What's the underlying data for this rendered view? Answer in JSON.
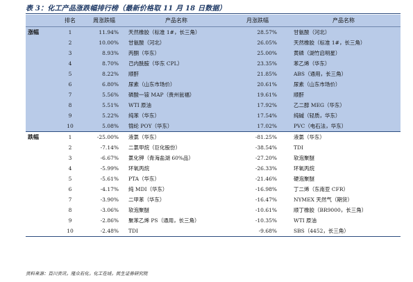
{
  "title": "表 3：化工产品涨跌幅排行榜（最新价格取 11 月 18 日数据）",
  "headers": {
    "rank": "排名",
    "weekly_change": "周涨跌幅",
    "product_name": "产品名称",
    "monthly_change": "月涨跌幅",
    "product_name_2": "产品名称"
  },
  "gainers": {
    "label": "涨幅",
    "rows": [
      {
        "rank": "1",
        "weekly": "11.94%",
        "weekly_product": "天然橡胶（标准 1#，长三角）",
        "monthly": "28.57%",
        "monthly_product": "甘氨酸（河北）"
      },
      {
        "rank": "2",
        "weekly": "10.00%",
        "weekly_product": "甘氨酸（河北）",
        "monthly": "26.05%",
        "monthly_product": "天然橡胶（标准 1#，长三角）"
      },
      {
        "rank": "3",
        "weekly": "8.93%",
        "weekly_product": "丙酮（华东）",
        "monthly": "25.00%",
        "monthly_product": "黄磷（湖竹启明星）"
      },
      {
        "rank": "4",
        "weekly": "8.70%",
        "weekly_product": "己内酰胺（华东 CPL）",
        "monthly": "23.35%",
        "monthly_product": "苯乙烯（华东）"
      },
      {
        "rank": "5",
        "weekly": "8.22%",
        "weekly_product": "顺酐",
        "monthly": "21.85%",
        "monthly_product": "ABS（通用，长三角）"
      },
      {
        "rank": "6",
        "weekly": "6.80%",
        "weekly_product": "尿素（山东市场价）",
        "monthly": "20.61%",
        "monthly_product": "尿素（山东市场价）"
      },
      {
        "rank": "7",
        "weekly": "5.56%",
        "weekly_product": "磷酸一铵 MAP（贵州瓮福）",
        "monthly": "19.61%",
        "monthly_product": "顺酐"
      },
      {
        "rank": "8",
        "weekly": "5.51%",
        "weekly_product": "WTI 原油",
        "monthly": "17.92%",
        "monthly_product": "乙二醇 MEG（华东）"
      },
      {
        "rank": "9",
        "weekly": "5.22%",
        "weekly_product": "纯苯（华东）",
        "monthly": "17.54%",
        "monthly_product": "纯碱（轻质，华东）"
      },
      {
        "rank": "10",
        "weekly": "5.08%",
        "weekly_product": "锦纶 POY（华东）",
        "monthly": "17.02%",
        "monthly_product": "PVC（电石法，华东）"
      }
    ]
  },
  "losers": {
    "label": "跌幅",
    "rows": [
      {
        "rank": "1",
        "weekly": "-25.00%",
        "weekly_product": "液氯（华东）",
        "monthly": "-81.25%",
        "monthly_product": "液氯（华东）"
      },
      {
        "rank": "2",
        "weekly": "-7.14%",
        "weekly_product": "二氯甲烷（巨化股份）",
        "monthly": "-38.54%",
        "monthly_product": "TDI"
      },
      {
        "rank": "3",
        "weekly": "-6.67%",
        "weekly_product": "氯化钾（青海盐湖 60%品）",
        "monthly": "-27.20%",
        "monthly_product": "软泡聚醚"
      },
      {
        "rank": "4",
        "weekly": "-5.99%",
        "weekly_product": "环氧丙烷",
        "monthly": "-26.33%",
        "monthly_product": "环氧丙烷"
      },
      {
        "rank": "5",
        "weekly": "-5.61%",
        "weekly_product": "PTA（华东）",
        "monthly": "-21.46%",
        "monthly_product": "硬泡聚醚"
      },
      {
        "rank": "6",
        "weekly": "-4.17%",
        "weekly_product": "纯 MDI（华东）",
        "monthly": "-16.98%",
        "monthly_product": "丁二烯（东南亚 CFR）"
      },
      {
        "rank": "7",
        "weekly": "-3.90%",
        "weekly_product": "二甲苯（华东）",
        "monthly": "-16.47%",
        "monthly_product": "NYMEX 天然气（期货）"
      },
      {
        "rank": "8",
        "weekly": "-3.06%",
        "weekly_product": "软泡聚醚",
        "monthly": "-10.61%",
        "monthly_product": "顺丁橡胶（BR9000，长三角）"
      },
      {
        "rank": "9",
        "weekly": "-2.86%",
        "weekly_product": "聚苯乙烯 PS（通用，长三角）",
        "monthly": "-10.35%",
        "monthly_product": "WTI 原油"
      },
      {
        "rank": "10",
        "weekly": "-2.48%",
        "weekly_product": "TDI",
        "monthly": "-9.68%",
        "monthly_product": "SBS（4452，长三角）"
      }
    ]
  },
  "source": "资料来源：百川资讯，隆众石化，化工在线，民生证券研究院",
  "colors": {
    "header_fill": "#b9cbe8",
    "title_color": "#1f3a66",
    "rule_color": "#2b4b7e"
  }
}
